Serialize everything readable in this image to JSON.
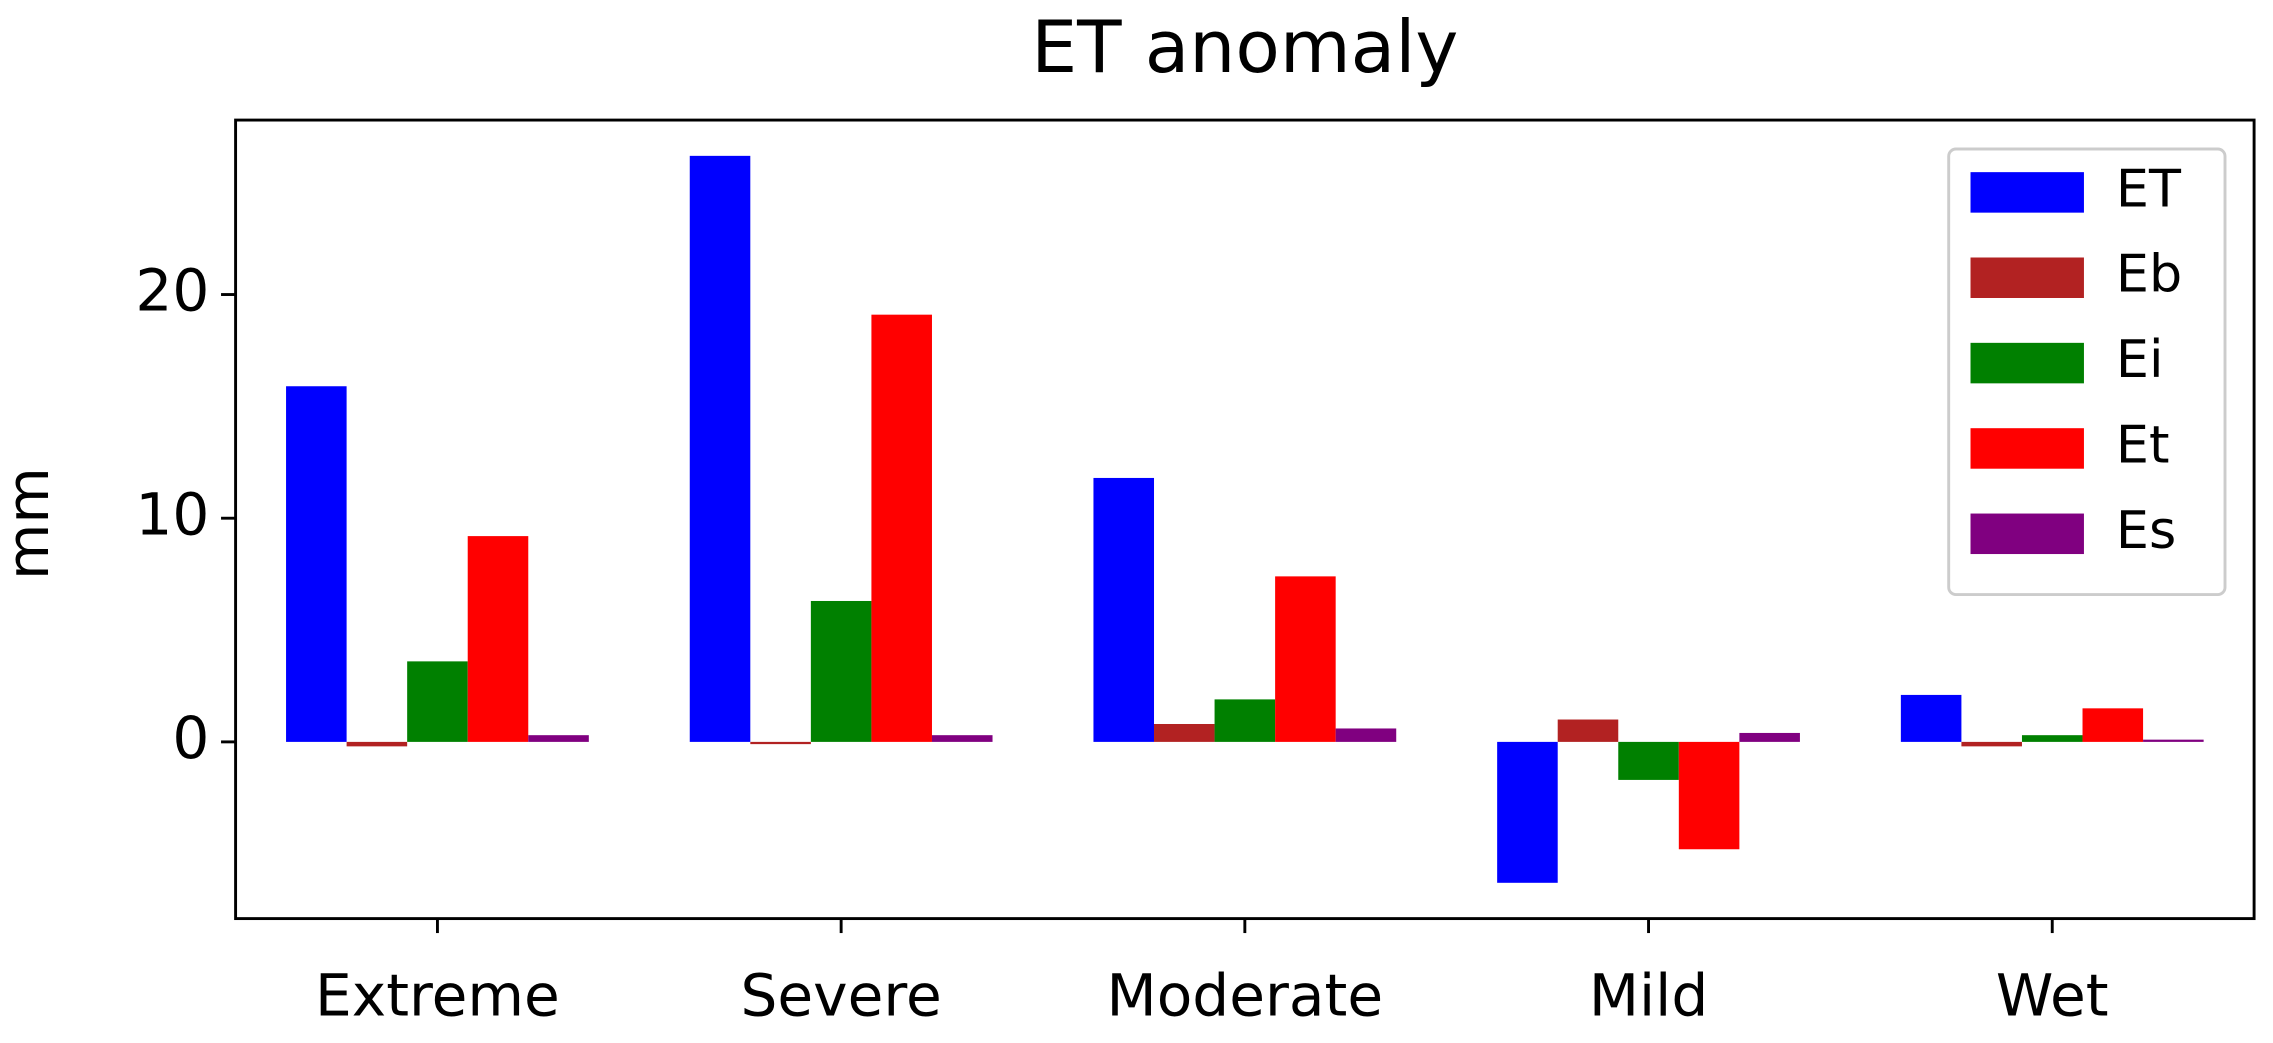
{
  "chart_data": {
    "type": "bar",
    "title": "ET anomaly",
    "y_label": "mm",
    "categories": [
      "Extreme",
      "Severe",
      "Moderate",
      "Mild",
      "Wet"
    ],
    "series": [
      {
        "name": "ET",
        "color": "#0000ff",
        "values": [
          15.9,
          26.2,
          11.8,
          -6.3,
          2.1
        ]
      },
      {
        "name": "Eb",
        "color": "#b22222",
        "values": [
          -0.2,
          -0.1,
          0.8,
          1.0,
          -0.2
        ]
      },
      {
        "name": "Ei",
        "color": "#008000",
        "values": [
          3.6,
          6.3,
          1.9,
          -1.7,
          0.3
        ]
      },
      {
        "name": "Et",
        "color": "#ff0000",
        "values": [
          9.2,
          19.1,
          7.4,
          -4.8,
          1.5
        ]
      },
      {
        "name": "Es",
        "color": "#800080",
        "values": [
          0.3,
          0.3,
          0.6,
          0.4,
          0.1
        ]
      }
    ],
    "ylim": [
      -7.9,
      27.8
    ],
    "yticks": [
      0,
      10,
      20
    ],
    "grid": false,
    "legend": "upper right"
  }
}
